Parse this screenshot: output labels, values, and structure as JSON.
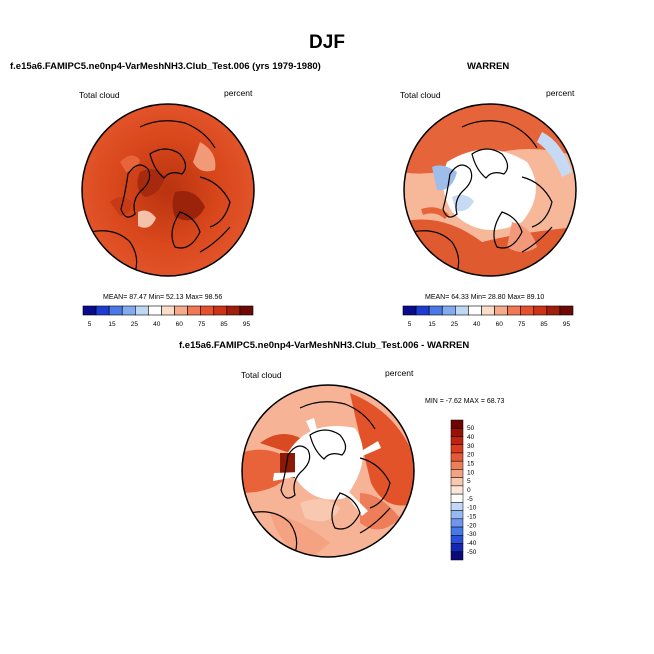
{
  "title": "DJF",
  "panels": [
    {
      "subtitle": "f.e15a6.FAMIPC5.ne0np4-VarMeshNH3.Club_Test.006 (yrs 1979-1980)",
      "left_label": "Total cloud",
      "right_label": "percent",
      "stats": "MEAN=  87.47  Min=  52.13  Max=  98.56",
      "colorbar": {
        "colors": [
          "#0a0a8c",
          "#1e3cd2",
          "#4b78e6",
          "#82aaf0",
          "#bed7f5",
          "#ffffff",
          "#fadcc8",
          "#f5aa8c",
          "#f07855",
          "#e6502d",
          "#cd3214",
          "#a01e0a",
          "#6e0a05"
        ],
        "labels": [
          "5",
          "15",
          "25",
          "40",
          "60",
          "75",
          "85",
          "95"
        ]
      }
    },
    {
      "subtitle": "WARREN",
      "left_label": "Total cloud",
      "right_label": "percent",
      "stats": "MEAN=  64.33  Min=  28.80  Max=  89.10",
      "colorbar": {
        "colors": [
          "#0a0a8c",
          "#1e3cd2",
          "#4b78e6",
          "#82aaf0",
          "#bed7f5",
          "#ffffff",
          "#fadcc8",
          "#f5aa8c",
          "#f07855",
          "#e6502d",
          "#cd3214",
          "#a01e0a",
          "#6e0a05"
        ],
        "labels": [
          "5",
          "15",
          "25",
          "40",
          "60",
          "75",
          "85",
          "95"
        ]
      }
    },
    {
      "subtitle": "f.e15a6.FAMIPC5.ne0np4-VarMeshNH3.Club_Test.006 - WARREN",
      "left_label": "Total cloud",
      "right_label": "percent",
      "stats": "MIN = -7.62  MAX = 68.73",
      "colorbar": {
        "colors": [
          "#0a0a78",
          "#1428b4",
          "#2850dc",
          "#4678e6",
          "#6e96ee",
          "#96b9f3",
          "#c3d7f8",
          "#ffffff",
          "#fde6d8",
          "#f9c8b0",
          "#f4a282",
          "#ee7d5a",
          "#e65a37",
          "#dc3c1e",
          "#be2310",
          "#961405",
          "#6e0500"
        ],
        "labels": [
          "50",
          "40",
          "30",
          "20",
          "15",
          "10",
          "5",
          "0",
          "-5",
          "-10",
          "-15",
          "-20",
          "-30",
          "-40",
          "-50"
        ]
      }
    }
  ]
}
